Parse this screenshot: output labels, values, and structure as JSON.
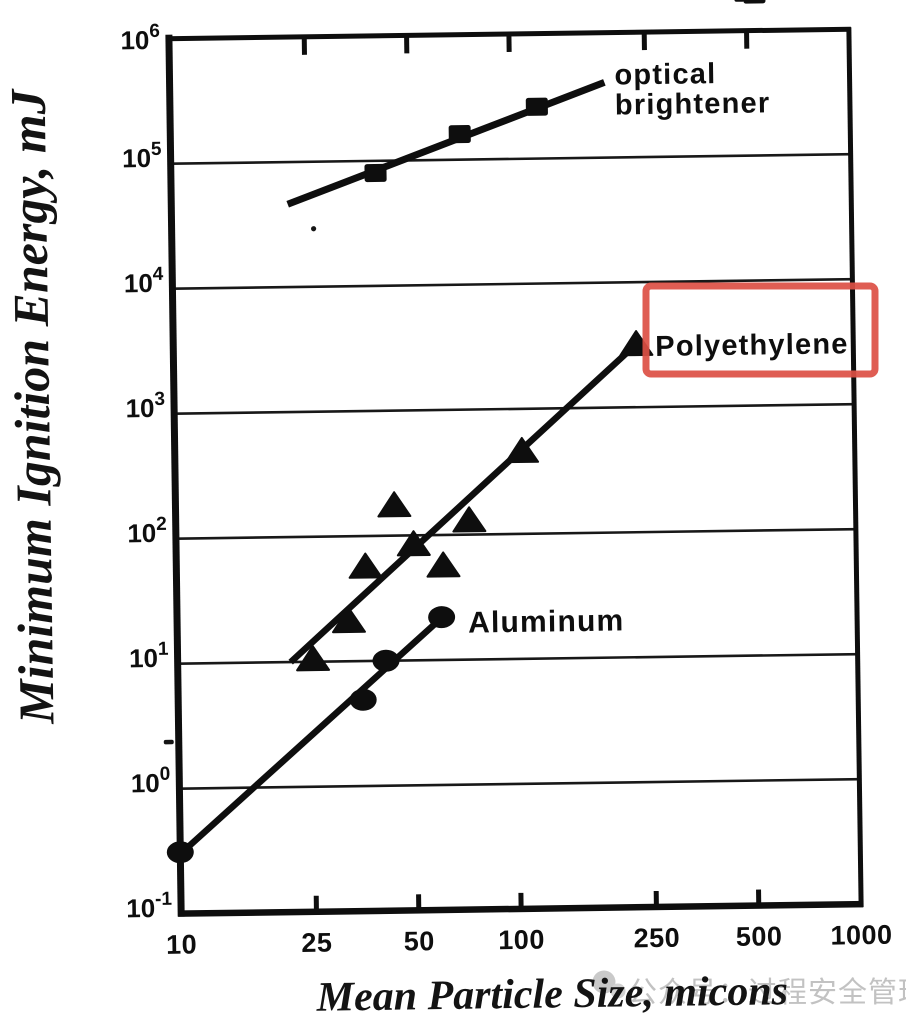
{
  "figure": {
    "description": "Scanned log-log scatter chart of minimum ignition energy versus mean particle size for three dusts"
  },
  "chart_data": {
    "type": "scatter",
    "title": "",
    "xlabel": "Mean Particle Size, micons",
    "ylabel": "Minimum Ignition Energy, mJ",
    "x_scale": "log",
    "y_scale": "log",
    "xlim": [
      10,
      1000
    ],
    "ylim": [
      0.1,
      1000000
    ],
    "grid": "horizontal-only",
    "x_ticks": [
      {
        "value": 10,
        "label": "10"
      },
      {
        "value": 25,
        "label": "25"
      },
      {
        "value": 50,
        "label": "50"
      },
      {
        "value": 100,
        "label": "100"
      },
      {
        "value": 250,
        "label": "250"
      },
      {
        "value": 500,
        "label": "500"
      },
      {
        "value": 1000,
        "label": "1000"
      }
    ],
    "y_ticks": [
      {
        "value": 1000000,
        "base": "10",
        "exp": "6"
      },
      {
        "value": 100000,
        "base": "10",
        "exp": "5"
      },
      {
        "value": 10000,
        "base": "10",
        "exp": "4"
      },
      {
        "value": 1000,
        "base": "10",
        "exp": "3"
      },
      {
        "value": 100,
        "base": "10",
        "exp": "2"
      },
      {
        "value": 10,
        "base": "10",
        "exp": "1"
      },
      {
        "value": 1,
        "base": "10",
        "exp": "0"
      },
      {
        "value": 0.1,
        "base": "10",
        "exp": "-1"
      }
    ],
    "gridlines_y": [
      100000,
      10000,
      1000,
      100,
      10,
      1
    ],
    "inner_ticks_x": [
      25,
      50,
      100,
      250,
      500
    ],
    "series": [
      {
        "name": "optical brightener",
        "marker": "square",
        "label_lines": [
          "optical",
          "brightener"
        ],
        "points": [
          [
            40,
            80000
          ],
          [
            71,
            160000
          ],
          [
            120,
            260000
          ]
        ],
        "trend_line": [
          [
            22,
            46000
          ],
          [
            190,
            400000
          ]
        ]
      },
      {
        "name": "Polyethylene",
        "marker": "triangle",
        "label_lines": [
          "Polyethylene"
        ],
        "points": [
          [
            25,
            10.5
          ],
          [
            32,
            21
          ],
          [
            36,
            57
          ],
          [
            44,
            175
          ],
          [
            50,
            85
          ],
          [
            61,
            57
          ],
          [
            73,
            130
          ],
          [
            105,
            460
          ],
          [
            230,
            3200
          ]
        ],
        "trend_line": [
          [
            21.5,
            10
          ],
          [
            230,
            3200
          ]
        ]
      },
      {
        "name": "Aluminum",
        "marker": "circle",
        "label_lines": [
          "Aluminum"
        ],
        "points": [
          [
            10,
            0.31
          ],
          [
            35,
            4.9
          ],
          [
            41,
            10
          ],
          [
            60,
            22
          ]
        ],
        "trend_line": [
          [
            10,
            0.3
          ],
          [
            62,
            23.5
          ]
        ]
      }
    ],
    "annotation": {
      "type": "hand-drawn-box",
      "highlights": "Polyethylene",
      "color": "#dc4f44"
    }
  },
  "watermark": {
    "text": "公众号：过程安全管理",
    "color": "#c2c2c2"
  },
  "colors": {
    "ink": "#0e0e0e",
    "highlight_red": "#dc4f44",
    "watermark_gray": "#c2c2c2",
    "background": "#ffffff"
  }
}
